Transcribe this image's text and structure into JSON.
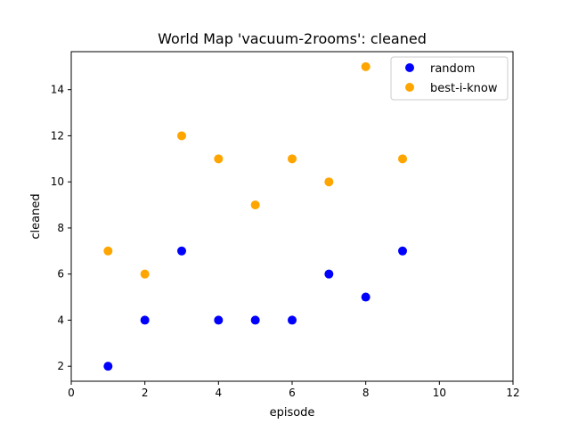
{
  "chart_data": {
    "type": "scatter",
    "title": "World Map 'vacuum-2rooms': cleaned",
    "xlabel": "episode",
    "ylabel": "cleaned",
    "xlim": [
      0,
      12
    ],
    "ylim": [
      1.35,
      15.65
    ],
    "x_ticks": [
      0,
      2,
      4,
      6,
      8,
      10,
      12
    ],
    "y_ticks": [
      2,
      4,
      6,
      8,
      10,
      12,
      14
    ],
    "grid": false,
    "legend_position": "top-right",
    "series": [
      {
        "name": "random",
        "color": "#0000ff",
        "x": [
          1,
          2,
          3,
          4,
          5,
          6,
          7,
          8,
          9
        ],
        "y": [
          2,
          4,
          7,
          4,
          4,
          4,
          6,
          5,
          7
        ]
      },
      {
        "name": "best-i-know",
        "color": "#ffa500",
        "x": [
          1,
          2,
          3,
          4,
          5,
          6,
          7,
          8,
          9
        ],
        "y": [
          7,
          6,
          12,
          11,
          9,
          11,
          10,
          15,
          11
        ]
      }
    ]
  }
}
